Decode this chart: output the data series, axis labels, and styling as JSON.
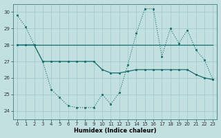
{
  "xlabel": "Humidex (Indice chaleur)",
  "background_color": "#c2e0e0",
  "grid_color": "#9ec8c8",
  "line_color": "#1a6b6b",
  "xlim": [
    -0.5,
    23.5
  ],
  "ylim": [
    23.5,
    30.5
  ],
  "yticks": [
    24,
    25,
    26,
    27,
    28,
    29,
    30
  ],
  "xticks": [
    0,
    1,
    2,
    3,
    4,
    5,
    6,
    7,
    8,
    9,
    10,
    11,
    12,
    13,
    14,
    15,
    16,
    17,
    18,
    19,
    20,
    21,
    22,
    23
  ],
  "s1_x": [
    0,
    1,
    2,
    3,
    4,
    5,
    6,
    7,
    8,
    9,
    10,
    11,
    12,
    13,
    14,
    15,
    16,
    17,
    18,
    19,
    20,
    21,
    22,
    23
  ],
  "s1_y": [
    29.8,
    29.1,
    28.0,
    27.0,
    25.3,
    24.8,
    24.3,
    24.2,
    24.2,
    24.2,
    25.0,
    24.4,
    25.1,
    26.8,
    28.7,
    30.2,
    30.2,
    27.3,
    29.0,
    28.1,
    28.9,
    27.7,
    27.1,
    25.9
  ],
  "s2_x": [
    0,
    1,
    2,
    3,
    4,
    5,
    6,
    7,
    8,
    9,
    10,
    11,
    12,
    13,
    14,
    15,
    16,
    17,
    18,
    19,
    20,
    21,
    22,
    23
  ],
  "s2_y": [
    28.0,
    28.0,
    28.0,
    28.0,
    28.0,
    28.0,
    28.0,
    28.0,
    28.0,
    28.0,
    28.0,
    28.0,
    28.0,
    28.0,
    28.0,
    28.0,
    28.0,
    28.0,
    28.0,
    28.0,
    28.0,
    28.0,
    28.0,
    28.0
  ],
  "s3_x": [
    0,
    1,
    2,
    3,
    4,
    5,
    6,
    7,
    8,
    9,
    10,
    11,
    12,
    13,
    14,
    15,
    16,
    17,
    18,
    19,
    20,
    21,
    22,
    23
  ],
  "s3_y": [
    28.0,
    28.0,
    28.0,
    27.0,
    27.0,
    27.0,
    27.0,
    27.0,
    27.0,
    27.0,
    26.5,
    26.3,
    26.3,
    26.4,
    26.5,
    26.5,
    26.5,
    26.5,
    26.5,
    26.5,
    26.5,
    26.2,
    26.0,
    25.9
  ]
}
